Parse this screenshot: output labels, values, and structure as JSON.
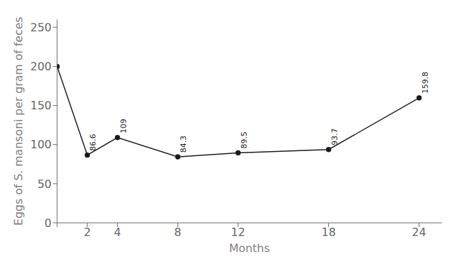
{
  "chart_data": {
    "type": "line",
    "x": [
      0,
      2,
      4,
      8,
      12,
      18,
      24
    ],
    "values": [
      200,
      86.6,
      109,
      84.3,
      89.5,
      93.7,
      159.8
    ],
    "xlim": [
      0,
      25.5
    ],
    "xticks": [
      {
        "value": 0,
        "label": ""
      },
      2,
      4,
      8,
      12,
      18,
      24
    ],
    "ylim": [
      0,
      260
    ],
    "yticks": [
      0,
      50,
      100,
      150,
      200,
      250
    ],
    "xlabel": "Months",
    "ylabel": "Eggs of S. mansoni per gram of feces",
    "color": "#1a1a1a",
    "marker": "circle",
    "grid": false,
    "annotations": [
      {
        "x": 2,
        "y": 86.6,
        "text": "86.6"
      },
      {
        "x": 4,
        "y": 109,
        "text": "109"
      },
      {
        "x": 8,
        "y": 84.3,
        "text": "84.3"
      },
      {
        "x": 12,
        "y": 89.5,
        "text": "89.5"
      },
      {
        "x": 18,
        "y": 93.7,
        "text": "93.7"
      },
      {
        "x": 24,
        "y": 159.8,
        "text": "159.8"
      }
    ]
  }
}
